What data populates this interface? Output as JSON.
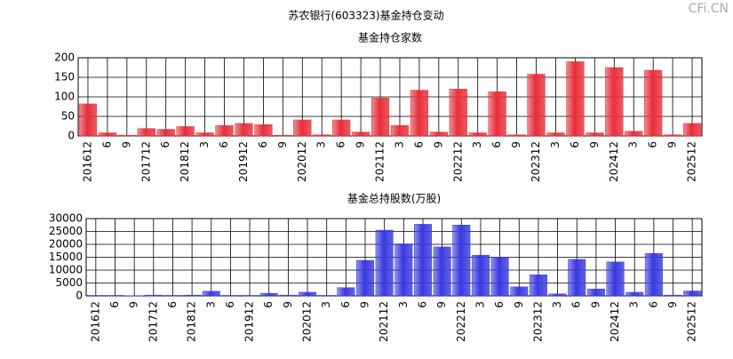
{
  "title": "苏农银行(603323)基金持仓变动",
  "watermark": "CFi.CN",
  "chart_data": [
    {
      "type": "bar",
      "title": "基金持仓家数",
      "categories": [
        "201612",
        "6",
        "9",
        "201712",
        "6",
        "201812",
        "3",
        "6",
        "201912",
        "6",
        "9",
        "202012",
        "3",
        "6",
        "9",
        "202112",
        "3",
        "6",
        "9",
        "202212",
        "3",
        "6",
        "9",
        "202312",
        "3",
        "6",
        "9",
        "202412",
        "3",
        "6",
        "9",
        "202512"
      ],
      "values": [
        82,
        8,
        2,
        19,
        17,
        24,
        8,
        27,
        32,
        29,
        2,
        41,
        3,
        41,
        10,
        97,
        27,
        117,
        10,
        120,
        8,
        113,
        3,
        158,
        8,
        190,
        8,
        175,
        12,
        168,
        3,
        32
      ],
      "color": "#e8303a",
      "ylim": [
        0,
        200
      ],
      "yticks": [
        0,
        50,
        100,
        150,
        200
      ],
      "grid": true
    },
    {
      "type": "bar",
      "title": "基金总持股数(万股)",
      "categories": [
        "201612",
        "6",
        "9",
        "201712",
        "6",
        "201812",
        "3",
        "6",
        "201912",
        "6",
        "9",
        "202012",
        "3",
        "6",
        "9",
        "202112",
        "3",
        "6",
        "9",
        "202212",
        "3",
        "6",
        "9",
        "202312",
        "3",
        "6",
        "9",
        "202412",
        "3",
        "6",
        "9",
        "202512"
      ],
      "values": [
        200,
        200,
        100,
        300,
        200,
        300,
        1800,
        200,
        200,
        1000,
        300,
        1400,
        200,
        3200,
        13800,
        25500,
        20200,
        27800,
        19000,
        27500,
        15800,
        15000,
        3500,
        8200,
        800,
        14200,
        2700,
        13200,
        1400,
        16500,
        300,
        1900
      ],
      "color": "#3a3ae0",
      "ylim": [
        0,
        30000
      ],
      "yticks": [
        0,
        5000,
        10000,
        15000,
        20000,
        25000,
        30000
      ],
      "grid": true
    }
  ]
}
